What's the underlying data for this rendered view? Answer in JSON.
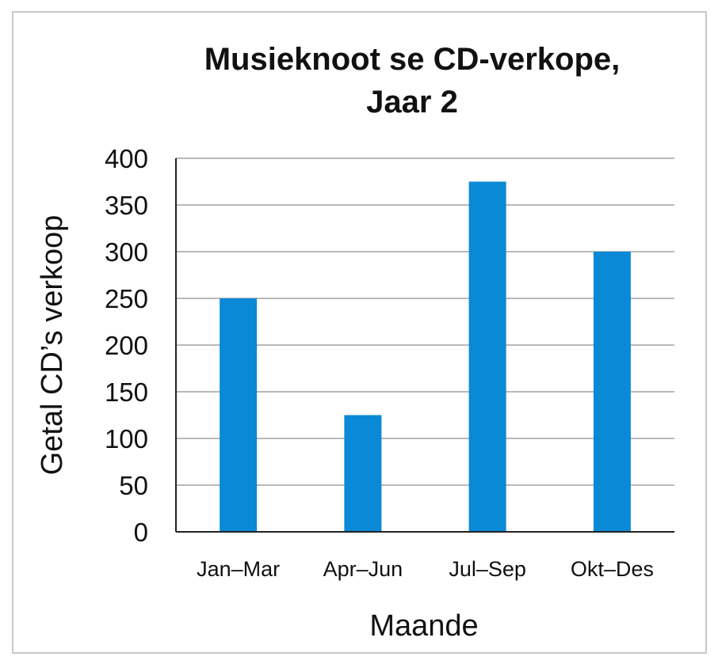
{
  "chart_data": {
    "type": "bar",
    "title_lines": [
      "Musieknoot se CD-verkope,",
      "Jaar 2"
    ],
    "xlabel": "Maande",
    "ylabel": "Getal CD’s verkoop",
    "categories": [
      "Jan–Mar",
      "Apr–Jun",
      "Jul–Sep",
      "Okt–Des"
    ],
    "values": [
      250,
      125,
      375,
      300
    ],
    "yticks": [
      0,
      50,
      100,
      150,
      200,
      250,
      300,
      350,
      400
    ],
    "ylim": [
      0,
      400
    ],
    "grid": true,
    "bar_color": "#0a8ad6",
    "grid_color": "#b9b9b9",
    "axis_color": "#222222"
  }
}
